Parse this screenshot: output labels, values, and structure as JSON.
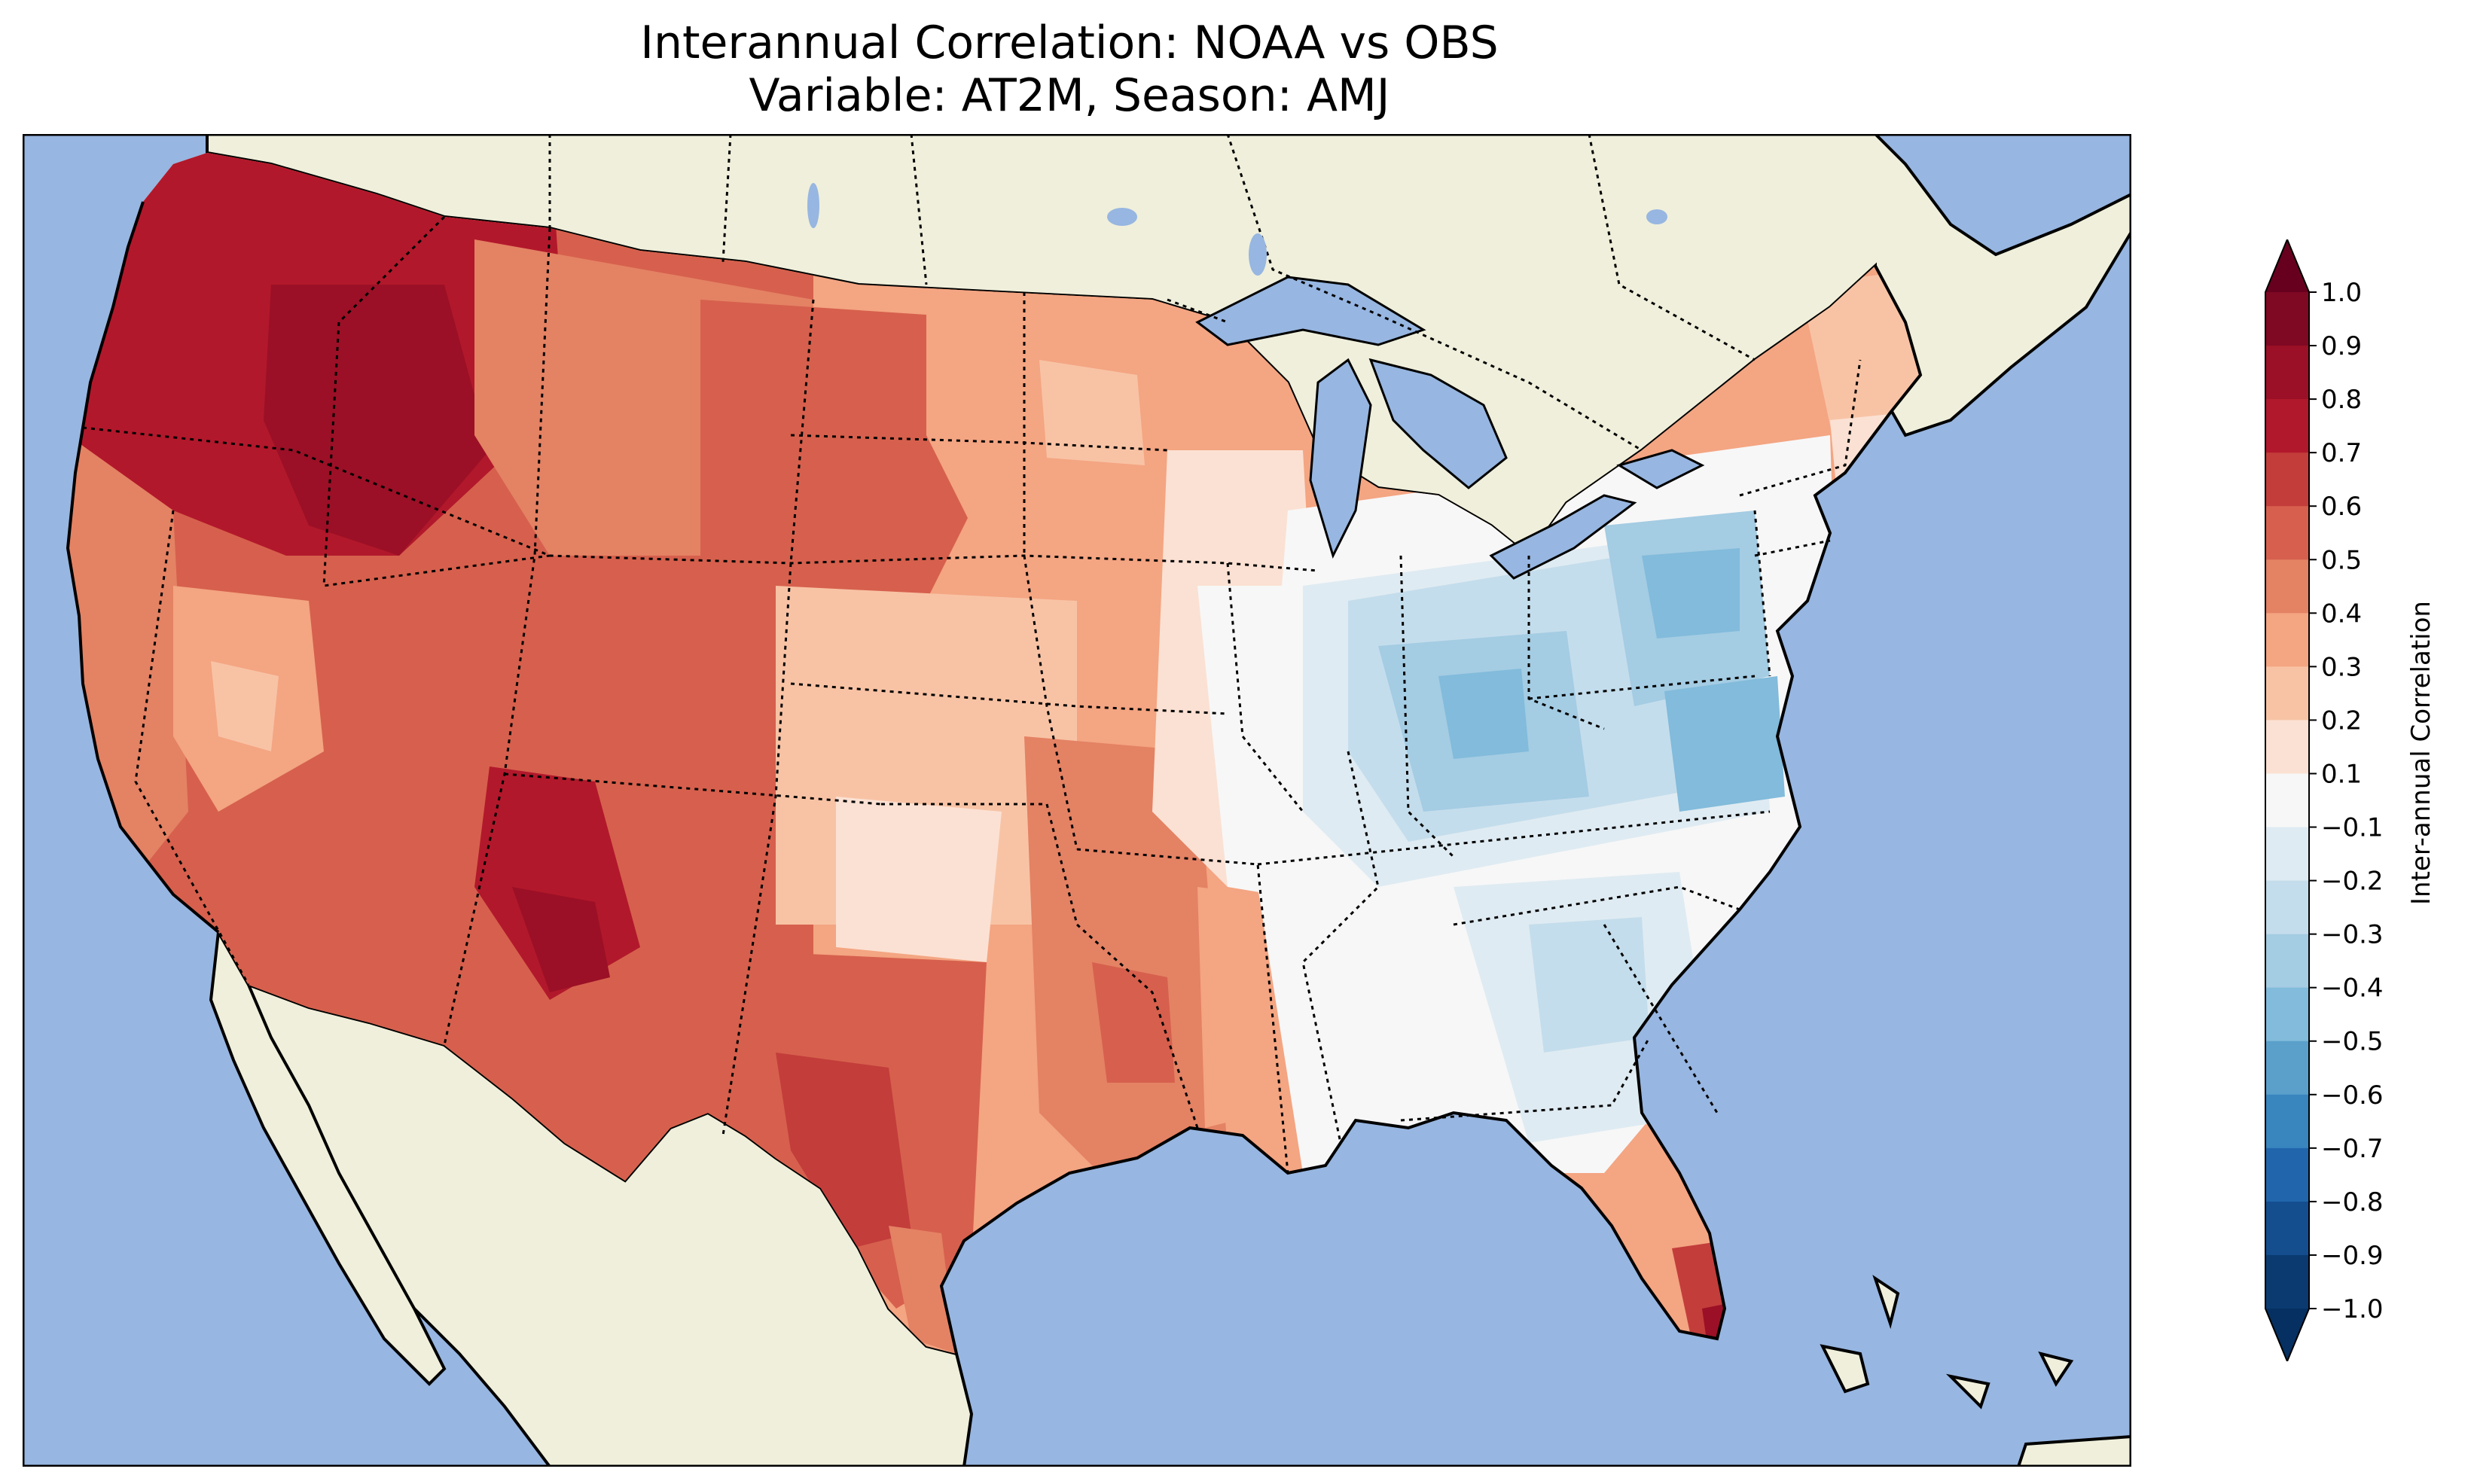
{
  "title_line1": "Interannual Correlation: NOAA vs OBS",
  "title_line2": "Variable: AT2M, Season: AMJ",
  "colorbar": {
    "label": "Inter-annual Correlation",
    "ticks": [
      "1.0",
      "0.9",
      "0.8",
      "0.7",
      "0.6",
      "0.5",
      "0.4",
      "0.3",
      "0.2",
      "0.1",
      "−0.1",
      "−0.2",
      "−0.3",
      "−0.4",
      "−0.5",
      "−0.6",
      "−0.7",
      "−0.8",
      "−0.9",
      "−1.0"
    ],
    "colors": [
      "#67001f",
      "#7f0823",
      "#9b1026",
      "#b2182b",
      "#c33d3b",
      "#d6604d",
      "#e48264",
      "#f4a582",
      "#f8c3a5",
      "#fbe1d3",
      "#f7f7f7",
      "#dfebf2",
      "#c4ddec",
      "#a4cce3",
      "#82bbdb",
      "#5aa0cb",
      "#3985be",
      "#2166ac",
      "#144e8f",
      "#0a3a70",
      "#053061"
    ],
    "extend": "both"
  },
  "map": {
    "ocean_color": "#97b6e1",
    "land_color": "#efefdb",
    "extent": "Contiguous United States",
    "field": "interannual correlation, 2 m air temperature, AMJ"
  }
}
